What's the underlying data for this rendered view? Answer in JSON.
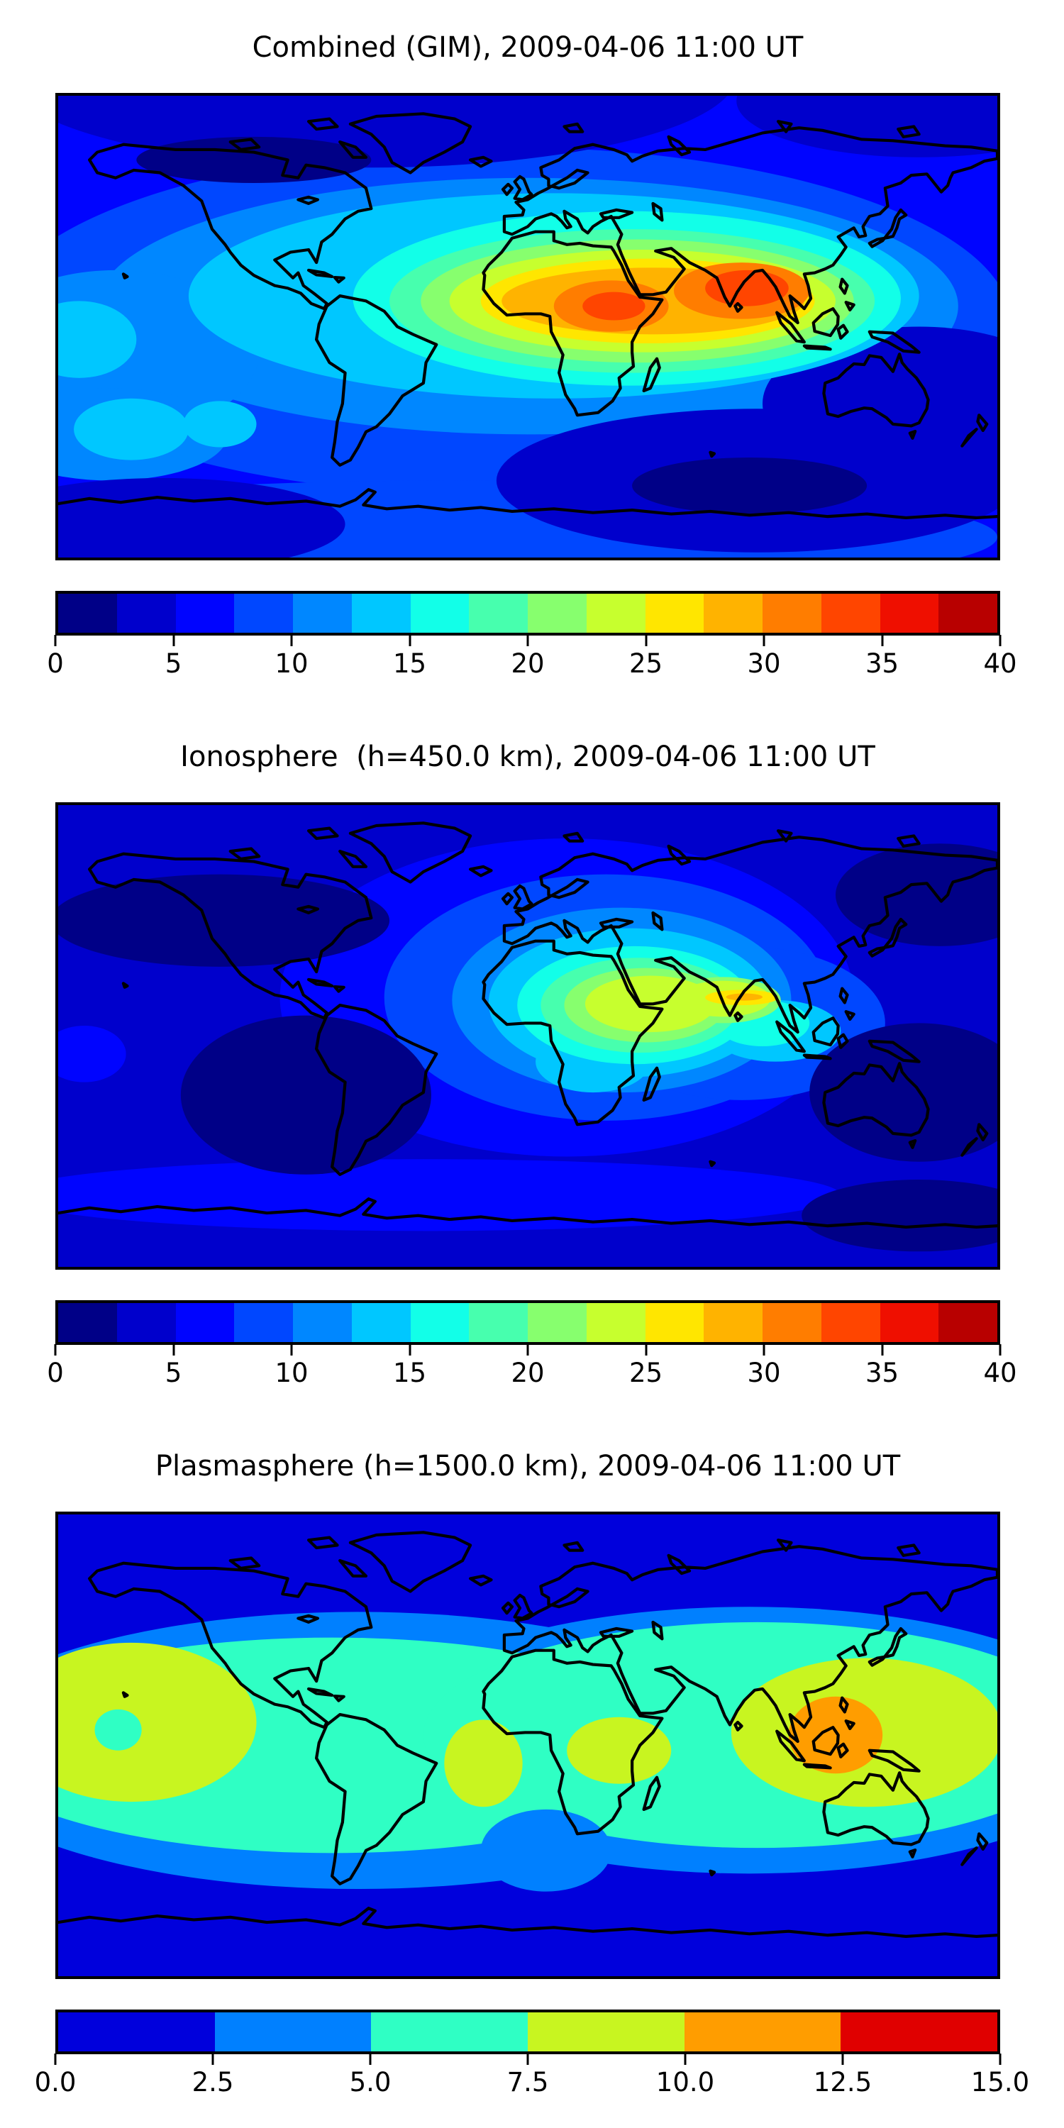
{
  "figure": {
    "background": "#ffffff",
    "frame_color": "#000000",
    "text_color": "#000000"
  },
  "chart_data": [
    {
      "type": "heatmap",
      "subtype": "filled_contour_world_map",
      "title": "Combined (GIM), 2009-04-06 11:00 UT",
      "projection": "equirectangular",
      "lon_range": [
        -180,
        180
      ],
      "lat_range": [
        -90,
        90
      ],
      "value_range": [
        0,
        40
      ],
      "contour_interval": 2.5,
      "n_levels": 16,
      "colormap": "jet",
      "grid": false,
      "legend_position": "bottom-colorbar",
      "colorbar_ticks": [
        "0",
        "5",
        "10",
        "15",
        "20",
        "25",
        "30",
        "35",
        "40"
      ],
      "palette": [
        "#000087",
        "#0000cc",
        "#0004ff",
        "#0047ff",
        "#0087ff",
        "#00c7ff",
        "#12ffe8",
        "#47ffae",
        "#87ff6e",
        "#c7ff2e",
        "#ffe600",
        "#ffb300",
        "#ff7d00",
        "#ff4500",
        "#ef0f00",
        "#b80000"
      ],
      "background_level": 2,
      "ellipse_format": "[center_lon, center_lat, radius_lon_deg, radius_lat_deg]",
      "regions": [
        {
          "level_index": 3,
          "value_min": 7.5,
          "value_max": 10.0,
          "ellipses": [
            [
              -10,
              2,
              195,
              68
            ],
            [
              -30,
              -82,
              210,
              22
            ]
          ]
        },
        {
          "level_index": 4,
          "value_min": 10.0,
          "value_max": 12.5,
          "ellipses": [
            [
              0,
              8,
              165,
              50
            ],
            [
              -158,
              -10,
              55,
              32
            ],
            [
              -160,
              -42,
              45,
              18
            ]
          ]
        },
        {
          "level_index": 1,
          "value_min": 2.5,
          "value_max": 5.0,
          "ellipses": [
            [
              -60,
              98,
              140,
              36
            ],
            [
              150,
              88,
              70,
              22
            ],
            [
              88,
              -60,
              100,
              28
            ],
            [
              150,
              -30,
              60,
              30
            ],
            [
              -140,
              -77,
              70,
              18
            ]
          ]
        },
        {
          "level_index": 0,
          "value_min": 0.0,
          "value_max": 2.5,
          "ellipses": [
            [
              -105,
              65,
              45,
              9
            ],
            [
              85,
              -62,
              45,
              11
            ]
          ]
        },
        {
          "level_index": 5,
          "value_min": 12.5,
          "value_max": 15.0,
          "ellipses": [
            [
              10,
              12,
              140,
              40
            ],
            [
              -172,
              -5,
              22,
              15
            ],
            [
              -152,
              -40,
              22,
              12
            ],
            [
              -118,
              -38,
              14,
              9
            ]
          ]
        },
        {
          "level_index": 6,
          "value_min": 15.0,
          "value_max": 17.5,
          "ellipses": [
            [
              38,
              11,
              105,
              34
            ]
          ]
        },
        {
          "level_index": 7,
          "value_min": 17.5,
          "value_max": 20.0,
          "ellipses": [
            [
              40,
              10,
              93,
              28
            ]
          ]
        },
        {
          "level_index": 8,
          "value_min": 20.0,
          "value_max": 22.5,
          "ellipses": [
            [
              42,
              10,
              83,
              24
            ]
          ]
        },
        {
          "level_index": 9,
          "value_min": 22.5,
          "value_max": 25.0,
          "ellipses": [
            [
              44,
              10,
              74,
              20
            ]
          ]
        },
        {
          "level_index": 10,
          "value_min": 25.0,
          "value_max": 27.5,
          "ellipses": [
            [
              46,
              10,
              64,
              16.5
            ]
          ]
        },
        {
          "level_index": 11,
          "value_min": 27.5,
          "value_max": 30.0,
          "ellipses": [
            [
              48,
              10,
              58,
              13
            ]
          ]
        },
        {
          "level_index": 12,
          "value_min": 30.0,
          "value_max": 32.5,
          "ellipses": [
            [
              32,
              8,
              22,
              10
            ],
            [
              82,
              14,
              26,
              11
            ]
          ]
        },
        {
          "level_index": 13,
          "value_min": 32.5,
          "value_max": 35.0,
          "ellipses": [
            [
              33,
              8,
              12,
              5.5
            ],
            [
              84,
              15,
              16,
              7
            ]
          ]
        }
      ]
    },
    {
      "type": "heatmap",
      "subtype": "filled_contour_world_map",
      "title": "Ionosphere  (h=450.0 km), 2009-04-06 11:00 UT",
      "projection": "equirectangular",
      "lon_range": [
        -180,
        180
      ],
      "lat_range": [
        -90,
        90
      ],
      "value_range": [
        0,
        40
      ],
      "contour_interval": 2.5,
      "n_levels": 16,
      "colormap": "jet",
      "grid": false,
      "legend_position": "bottom-colorbar",
      "colorbar_ticks": [
        "0",
        "5",
        "10",
        "15",
        "20",
        "25",
        "30",
        "35",
        "40"
      ],
      "palette": [
        "#000087",
        "#0000cc",
        "#0004ff",
        "#0047ff",
        "#0087ff",
        "#00c7ff",
        "#12ffe8",
        "#47ffae",
        "#87ff6e",
        "#c7ff2e",
        "#ffe600",
        "#ffb300",
        "#ff7d00",
        "#ff4500",
        "#ef0f00",
        "#b80000"
      ],
      "background_level": 1,
      "ellipse_format": "[center_lon, center_lat, radius_lon_deg, radius_lat_deg]",
      "regions": [
        {
          "level_index": 2,
          "value_min": 5.0,
          "value_max": 7.5,
          "ellipses": [
            [
              15,
              15,
              110,
              62
            ],
            [
              -40,
              -62,
              160,
              14
            ],
            [
              -170,
              -7,
              16,
              11
            ]
          ]
        },
        {
          "level_index": 3,
          "value_min": 7.5,
          "value_max": 10.0,
          "ellipses": [
            [
              30,
              15,
              85,
              48
            ],
            [
              82,
              5,
              55,
              30
            ]
          ]
        },
        {
          "level_index": 0,
          "value_min": 0.0,
          "value_max": 2.5,
          "ellipses": [
            [
              -118,
              45,
              65,
              18
            ],
            [
              -85,
              -23,
              48,
              31
            ],
            [
              150,
              -22,
              42,
              27
            ],
            [
              158,
              55,
              40,
              20
            ],
            [
              150,
              -70,
              45,
              14
            ]
          ]
        },
        {
          "level_index": 4,
          "value_min": 10.0,
          "value_max": 12.5,
          "ellipses": [
            [
              36,
              14,
              65,
              36
            ]
          ]
        },
        {
          "level_index": 5,
          "value_min": 12.5,
          "value_max": 15.0,
          "ellipses": [
            [
              39,
              13,
              54,
              29
            ],
            [
              25,
              -10,
              22,
              12
            ],
            [
              95,
              2,
              25,
              12
            ]
          ]
        },
        {
          "level_index": 6,
          "value_min": 15.0,
          "value_max": 17.5,
          "ellipses": [
            [
              41,
              12,
              45,
              23
            ],
            [
              90,
              5,
              18,
              9
            ]
          ]
        },
        {
          "level_index": 7,
          "value_min": 17.5,
          "value_max": 20.0,
          "ellipses": [
            [
              43,
              12,
              38,
              18.5
            ]
          ]
        },
        {
          "level_index": 8,
          "value_min": 20.0,
          "value_max": 22.5,
          "ellipses": [
            [
              45,
              12,
              31,
              14.5
            ],
            [
              75,
              14,
              22,
              9
            ]
          ]
        },
        {
          "level_index": 9,
          "value_min": 22.5,
          "value_max": 25.0,
          "ellipses": [
            [
              47,
              12.5,
              25,
              11
            ],
            [
              75,
              14.5,
              18,
              7
            ]
          ]
        },
        {
          "level_index": 10,
          "value_min": 25.0,
          "value_max": 27.5,
          "ellipses": [
            [
              82,
              15,
              14,
              3
            ]
          ]
        },
        {
          "level_index": 11,
          "value_min": 27.5,
          "value_max": 30.0,
          "ellipses": [
            [
              83,
              15.2,
              7,
              1.4
            ]
          ]
        }
      ]
    },
    {
      "type": "heatmap",
      "subtype": "filled_contour_world_map",
      "title": "Plasmasphere (h=1500.0 km), 2009-04-06 11:00 UT",
      "projection": "equirectangular",
      "lon_range": [
        -180,
        180
      ],
      "lat_range": [
        -90,
        90
      ],
      "value_range": [
        0,
        15
      ],
      "contour_interval": 2.5,
      "n_levels": 6,
      "colormap": "jet",
      "grid": false,
      "legend_position": "bottom-colorbar",
      "colorbar_ticks": [
        "0.0",
        "2.5",
        "5.0",
        "7.5",
        "10.0",
        "12.5",
        "15.0"
      ],
      "palette": [
        "#0000dc",
        "#0080ff",
        "#2fffc4",
        "#c8f520",
        "#ff9d00",
        "#e00000"
      ],
      "background_level": 0,
      "ellipse_format": "[center_lon, center_lat, radius_lon_deg, radius_lat_deg]",
      "regions": [
        {
          "level_index": 1,
          "value_min": 2.5,
          "value_max": 5.0,
          "ellipses": [
            [
              -65,
              -2,
              160,
              54
            ],
            [
              85,
              2,
              145,
              52
            ]
          ]
        },
        {
          "level_index": 2,
          "value_min": 5.0,
          "value_max": 7.5,
          "ellipses": [
            [
              -75,
              0,
              140,
              42
            ],
            [
              88,
              4,
              128,
              44
            ]
          ]
        },
        {
          "level_index": 1,
          "value_min": 2.5,
          "value_max": 5.0,
          "ellipses": [
            [
              7,
              -41,
              25,
              16
            ]
          ]
        },
        {
          "level_index": 3,
          "value_min": 7.5,
          "value_max": 10.0,
          "ellipses": [
            [
              -152,
              9,
              48,
              31
            ],
            [
              -17,
              -7,
              15,
              17
            ],
            [
              35,
              -2,
              20,
              13
            ],
            [
              130,
              5,
              52,
              29
            ]
          ]
        },
        {
          "level_index": 2,
          "value_min": 5.0,
          "value_max": 7.5,
          "ellipses": [
            [
              -157,
              6,
              9,
              8
            ]
          ]
        },
        {
          "level_index": 4,
          "value_min": 10.0,
          "value_max": 12.5,
          "ellipses": [
            [
              118,
              4,
              18,
              15
            ]
          ]
        }
      ]
    }
  ]
}
